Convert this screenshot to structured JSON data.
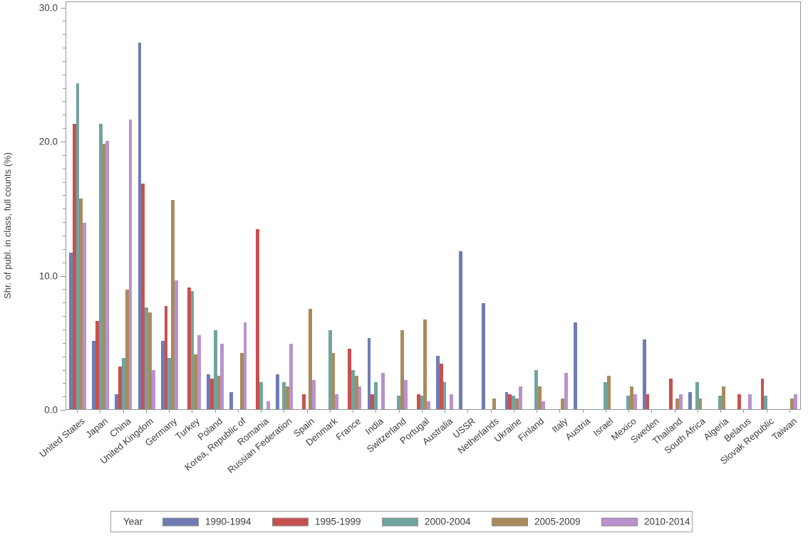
{
  "chart_data": {
    "type": "bar",
    "title": "",
    "xlabel": "",
    "ylabel": "Shr. of publ. in class, full counts (%)",
    "ylim": [
      0,
      30.45
    ],
    "ytick_values": [
      0,
      10,
      20,
      30
    ],
    "ytick_labels": [
      "0.0",
      "10.0",
      "20.0",
      "30.0"
    ],
    "minor_tick_step": 1,
    "grid": "off",
    "legend_position": "bottom",
    "legend_title": "Year",
    "categories": [
      "United States",
      "Japan",
      "China",
      "United Kingdom",
      "Germany",
      "Turkey",
      "Poland",
      "Korea, Republic of",
      "Romania",
      "Russian Federation",
      "Spain",
      "Denmark",
      "France",
      "India",
      "Switzerland",
      "Portugal",
      "Australia",
      "USSR",
      "Netherlands",
      "Ukraine",
      "Finland",
      "Italy",
      "Austria",
      "Israel",
      "Mexico",
      "Sweden",
      "Thailand",
      "South Africa",
      "Algeria",
      "Belarus",
      "Slovak Republic",
      "Taiwan"
    ],
    "series": [
      {
        "name": "1990-1994",
        "color": "#6f7db3",
        "values": [
          11.7,
          5.1,
          1.1,
          27.3,
          5.1,
          0,
          2.6,
          1.3,
          0,
          2.6,
          0,
          0,
          0,
          5.3,
          0,
          0,
          4.0,
          11.8,
          7.9,
          1.3,
          0,
          0,
          6.5,
          0,
          0,
          5.2,
          0,
          1.3,
          0,
          0,
          0,
          0
        ]
      },
      {
        "name": "1995-1999",
        "color": "#c8514f",
        "values": [
          21.3,
          6.6,
          3.2,
          16.8,
          7.7,
          9.1,
          2.3,
          0,
          13.4,
          0,
          1.1,
          0,
          4.5,
          1.1,
          0,
          1.1,
          3.4,
          0,
          0,
          1.1,
          0,
          0,
          0,
          0,
          0,
          1.1,
          2.3,
          0,
          0,
          1.1,
          2.3,
          0
        ]
      },
      {
        "name": "2000-2004",
        "color": "#71a49e",
        "values": [
          24.3,
          21.3,
          3.8,
          7.6,
          3.8,
          8.8,
          5.9,
          0,
          2.0,
          2.0,
          0,
          5.9,
          2.9,
          2.0,
          1.0,
          1.0,
          2.0,
          0,
          0,
          1.0,
          2.9,
          0,
          0,
          2.0,
          1.0,
          0,
          0,
          2.0,
          1.0,
          0,
          1.0,
          0
        ]
      },
      {
        "name": "2005-2009",
        "color": "#a98b5d",
        "values": [
          15.7,
          19.8,
          8.9,
          7.2,
          15.6,
          4.1,
          2.5,
          4.2,
          0,
          1.7,
          7.5,
          4.2,
          2.5,
          0,
          5.9,
          6.7,
          0,
          0,
          0.8,
          0.8,
          1.7,
          0.8,
          0,
          2.5,
          1.7,
          0,
          0.8,
          0.8,
          1.7,
          0,
          0,
          0.8
        ]
      },
      {
        "name": "2010-2014",
        "color": "#b992ce",
        "values": [
          13.9,
          20.0,
          21.6,
          2.9,
          9.6,
          5.5,
          4.9,
          6.5,
          0.6,
          4.9,
          2.2,
          1.1,
          1.7,
          2.7,
          2.2,
          0.6,
          1.1,
          0,
          0,
          1.7,
          0.6,
          2.7,
          0,
          0,
          1.1,
          0,
          1.1,
          0,
          0,
          1.1,
          0,
          1.1
        ]
      }
    ]
  }
}
